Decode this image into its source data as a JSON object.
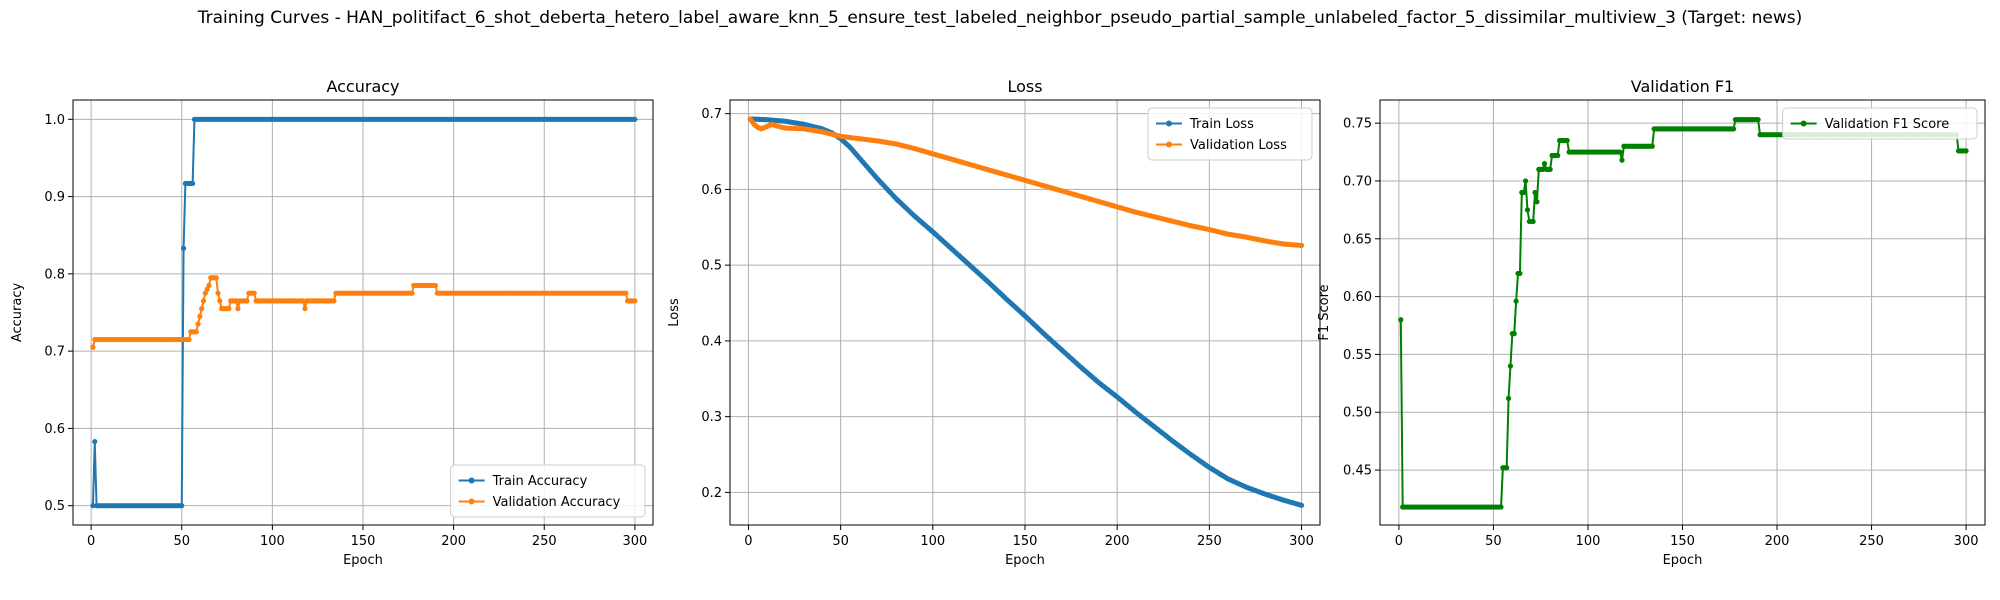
{
  "figure": {
    "suptitle": "Training Curves - HAN_politifact_6_shot_deberta_hetero_label_aware_knn_5_ensure_test_labeled_neighbor_pseudo_partial_sample_unlabeled_factor_5_dissimilar_multiview_3 (Target: news)"
  },
  "chart_data": [
    {
      "type": "line",
      "title": "Accuracy",
      "xlabel": "Epoch",
      "ylabel": "Accuracy",
      "xlim": [
        -10,
        310
      ],
      "ylim": [
        0.475,
        1.025
      ],
      "xticks": [
        0,
        50,
        100,
        150,
        200,
        250,
        300
      ],
      "yticks": [
        0.5,
        0.6,
        0.7,
        0.8,
        0.9,
        1.0
      ],
      "ytick_decimals": 1,
      "grid": true,
      "legend_position": "bottom-right",
      "series": [
        {
          "name": "Train Accuracy",
          "color": "#1f77b4",
          "points": [
            [
              1,
              0.5
            ],
            [
              2,
              0.583
            ],
            [
              3,
              0.5
            ],
            [
              50,
              0.5
            ],
            [
              51,
              0.833
            ],
            [
              52,
              0.917
            ],
            [
              56,
              0.917
            ],
            [
              57,
              1.0
            ],
            [
              300,
              1.0
            ]
          ]
        },
        {
          "name": "Validation Accuracy",
          "color": "#ff7f0e",
          "points": [
            [
              1,
              0.705
            ],
            [
              2,
              0.715
            ],
            [
              54,
              0.715
            ],
            [
              55,
              0.725
            ],
            [
              58,
              0.725
            ],
            [
              59,
              0.735
            ],
            [
              60,
              0.745
            ],
            [
              61,
              0.755
            ],
            [
              62,
              0.765
            ],
            [
              63,
              0.775
            ],
            [
              65,
              0.785
            ],
            [
              66,
              0.795
            ],
            [
              69,
              0.795
            ],
            [
              70,
              0.775
            ],
            [
              71,
              0.765
            ],
            [
              72,
              0.755
            ],
            [
              76,
              0.755
            ],
            [
              77,
              0.765
            ],
            [
              80,
              0.765
            ],
            [
              81,
              0.755
            ],
            [
              82,
              0.765
            ],
            [
              86,
              0.765
            ],
            [
              87,
              0.775
            ],
            [
              90,
              0.775
            ],
            [
              91,
              0.765
            ],
            [
              117,
              0.765
            ],
            [
              118,
              0.755
            ],
            [
              119,
              0.765
            ],
            [
              134,
              0.765
            ],
            [
              135,
              0.775
            ],
            [
              177,
              0.775
            ],
            [
              178,
              0.785
            ],
            [
              190,
              0.785
            ],
            [
              191,
              0.775
            ],
            [
              295,
              0.775
            ],
            [
              296,
              0.765
            ],
            [
              300,
              0.765
            ]
          ]
        }
      ]
    },
    {
      "type": "line",
      "title": "Loss",
      "xlabel": "Epoch",
      "ylabel": "Loss",
      "xlim": [
        -10,
        310
      ],
      "ylim": [
        0.157,
        0.718
      ],
      "xticks": [
        0,
        50,
        100,
        150,
        200,
        250,
        300
      ],
      "yticks": [
        0.2,
        0.3,
        0.4,
        0.5,
        0.6,
        0.7
      ],
      "ytick_decimals": 1,
      "grid": true,
      "legend_position": "top-right",
      "series": [
        {
          "name": "Train Loss",
          "color": "#1f77b4",
          "points": [
            [
              1,
              0.693
            ],
            [
              10,
              0.692
            ],
            [
              20,
              0.69
            ],
            [
              30,
              0.686
            ],
            [
              40,
              0.68
            ],
            [
              45,
              0.675
            ],
            [
              50,
              0.667
            ],
            [
              55,
              0.656
            ],
            [
              60,
              0.642
            ],
            [
              70,
              0.614
            ],
            [
              80,
              0.588
            ],
            [
              90,
              0.565
            ],
            [
              100,
              0.544
            ],
            [
              110,
              0.522
            ],
            [
              120,
              0.5
            ],
            [
              130,
              0.478
            ],
            [
              140,
              0.455
            ],
            [
              150,
              0.433
            ],
            [
              160,
              0.41
            ],
            [
              170,
              0.388
            ],
            [
              180,
              0.366
            ],
            [
              190,
              0.345
            ],
            [
              200,
              0.326
            ],
            [
              210,
              0.306
            ],
            [
              220,
              0.287
            ],
            [
              230,
              0.268
            ],
            [
              240,
              0.25
            ],
            [
              250,
              0.233
            ],
            [
              260,
              0.218
            ],
            [
              270,
              0.207
            ],
            [
              280,
              0.198
            ],
            [
              290,
              0.19
            ],
            [
              300,
              0.183
            ]
          ]
        },
        {
          "name": "Validation Loss",
          "color": "#ff7f0e",
          "points": [
            [
              1,
              0.693
            ],
            [
              3,
              0.686
            ],
            [
              5,
              0.682
            ],
            [
              7,
              0.68
            ],
            [
              10,
              0.683
            ],
            [
              13,
              0.686
            ],
            [
              15,
              0.684
            ],
            [
              20,
              0.681
            ],
            [
              30,
              0.68
            ],
            [
              40,
              0.676
            ],
            [
              50,
              0.67
            ],
            [
              60,
              0.667
            ],
            [
              70,
              0.664
            ],
            [
              80,
              0.66
            ],
            [
              90,
              0.654
            ],
            [
              100,
              0.647
            ],
            [
              110,
              0.64
            ],
            [
              120,
              0.633
            ],
            [
              130,
              0.626
            ],
            [
              140,
              0.619
            ],
            [
              150,
              0.612
            ],
            [
              160,
              0.605
            ],
            [
              170,
              0.598
            ],
            [
              180,
              0.591
            ],
            [
              190,
              0.584
            ],
            [
              200,
              0.577
            ],
            [
              210,
              0.57
            ],
            [
              220,
              0.564
            ],
            [
              230,
              0.558
            ],
            [
              240,
              0.552
            ],
            [
              250,
              0.547
            ],
            [
              260,
              0.541
            ],
            [
              270,
              0.537
            ],
            [
              280,
              0.532
            ],
            [
              290,
              0.528
            ],
            [
              300,
              0.526
            ]
          ]
        }
      ]
    },
    {
      "type": "line",
      "title": "Validation F1",
      "xlabel": "Epoch",
      "ylabel": "F1 Score",
      "xlim": [
        -10,
        310
      ],
      "ylim": [
        0.4025,
        0.77
      ],
      "xticks": [
        0,
        50,
        100,
        150,
        200,
        250,
        300
      ],
      "yticks": [
        0.45,
        0.5,
        0.55,
        0.6,
        0.65,
        0.7,
        0.75
      ],
      "ytick_decimals": 2,
      "grid": true,
      "legend_position": "top-right",
      "series": [
        {
          "name": "Validation F1 Score",
          "color": "#008000",
          "points": [
            [
              1,
              0.58
            ],
            [
              2,
              0.418
            ],
            [
              54,
              0.418
            ],
            [
              55,
              0.452
            ],
            [
              57,
              0.452
            ],
            [
              58,
              0.512
            ],
            [
              59,
              0.54
            ],
            [
              60,
              0.568
            ],
            [
              61,
              0.568
            ],
            [
              62,
              0.596
            ],
            [
              63,
              0.62
            ],
            [
              64,
              0.62
            ],
            [
              65,
              0.69
            ],
            [
              66,
              0.69
            ],
            [
              67,
              0.7
            ],
            [
              68,
              0.675
            ],
            [
              69,
              0.665
            ],
            [
              71,
              0.665
            ],
            [
              72,
              0.69
            ],
            [
              73,
              0.682
            ],
            [
              74,
              0.71
            ],
            [
              76,
              0.71
            ],
            [
              77,
              0.715
            ],
            [
              78,
              0.71
            ],
            [
              80,
              0.71
            ],
            [
              81,
              0.722
            ],
            [
              84,
              0.722
            ],
            [
              85,
              0.735
            ],
            [
              89,
              0.735
            ],
            [
              90,
              0.725
            ],
            [
              117,
              0.725
            ],
            [
              118,
              0.718
            ],
            [
              119,
              0.73
            ],
            [
              134,
              0.73
            ],
            [
              135,
              0.745
            ],
            [
              177,
              0.745
            ],
            [
              178,
              0.753
            ],
            [
              190,
              0.753
            ],
            [
              191,
              0.74
            ],
            [
              295,
              0.74
            ],
            [
              296,
              0.726
            ],
            [
              300,
              0.726
            ]
          ]
        }
      ]
    }
  ]
}
